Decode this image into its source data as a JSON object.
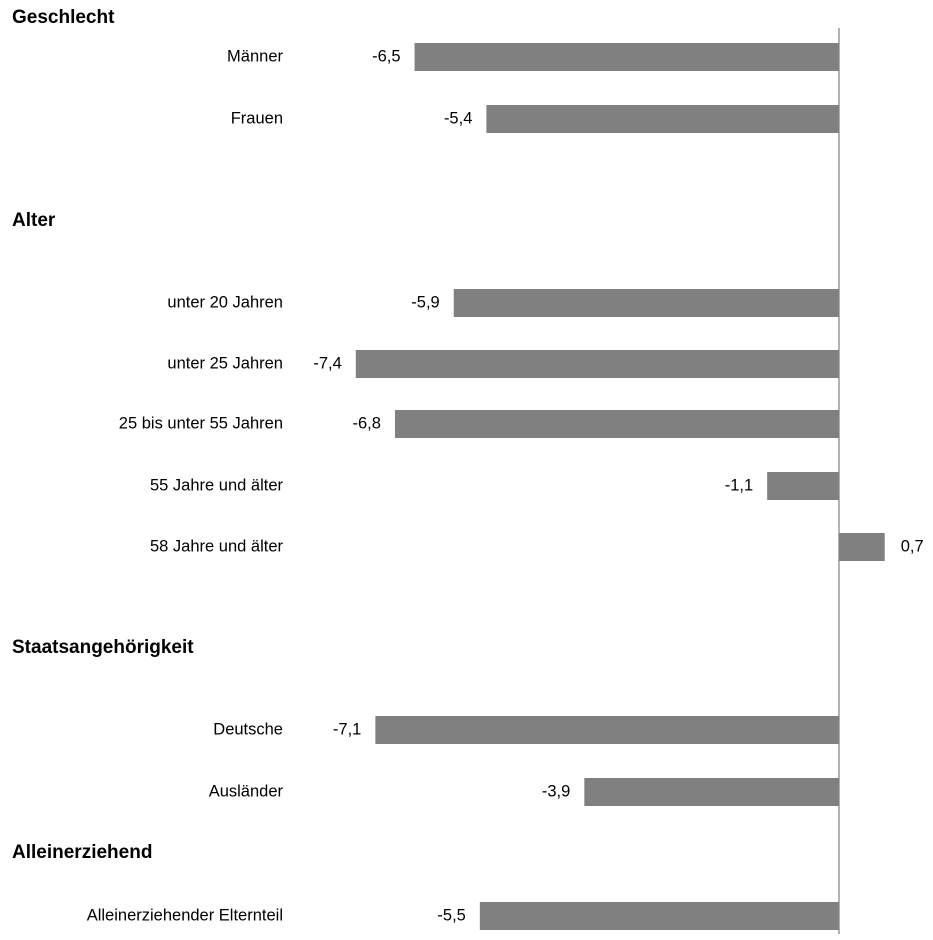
{
  "chart_data": {
    "type": "bar",
    "orientation": "horizontal",
    "bar_color": "#808080",
    "axis_color": "#999999",
    "grid": false,
    "groups": [
      {
        "title": "Geschlecht",
        "categories": [
          "Männer",
          "Frauen"
        ],
        "values": [
          -6.5,
          -5.4
        ],
        "labels": [
          "-6,5",
          "-5,4"
        ]
      },
      {
        "title": "Alter",
        "categories": [
          "unter 20 Jahren",
          "unter 25 Jahren",
          "25 bis unter 55 Jahren",
          "55 Jahre und älter",
          "58 Jahre und älter"
        ],
        "values": [
          -5.9,
          -7.4,
          -6.8,
          -1.1,
          0.7
        ],
        "labels": [
          "-5,9",
          "-7,4",
          "-6,8",
          "-1,1",
          "0,7"
        ]
      },
      {
        "title": "Staatsangehörigkeit",
        "categories": [
          "Deutsche",
          "Ausländer"
        ],
        "values": [
          -7.1,
          -3.9
        ],
        "labels": [
          "-7,1",
          "-3,9"
        ]
      },
      {
        "title": "Alleinerziehend",
        "categories": [
          "Alleinerziehender Elternteil"
        ],
        "values": [
          -5.5
        ],
        "labels": [
          "-5,5"
        ]
      }
    ]
  }
}
